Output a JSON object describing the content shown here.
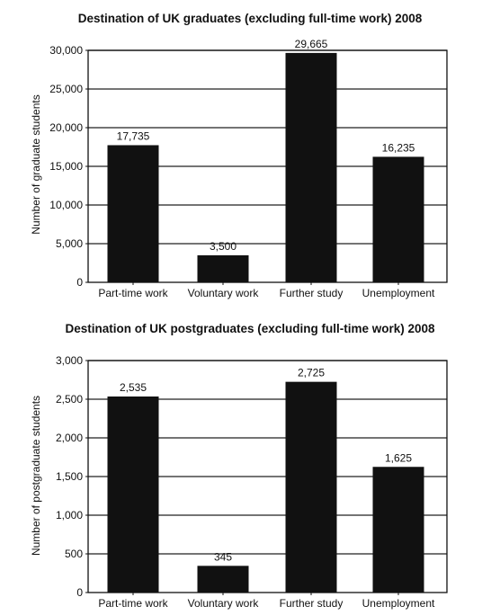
{
  "chart_data": [
    {
      "type": "bar",
      "title": "Destination of UK graduates (excluding full-time work) 2008",
      "xlabel": "",
      "ylabel": "Number of graduate students",
      "categories": [
        "Part-time work",
        "Voluntary work",
        "Further study",
        "Unemployment"
      ],
      "values": [
        17735,
        3500,
        29665,
        16235
      ],
      "value_labels": [
        "17,735",
        "3,500",
        "29,665",
        "16,235"
      ],
      "ylim": [
        0,
        30000
      ],
      "yticks": [
        0,
        5000,
        10000,
        15000,
        20000,
        25000,
        30000
      ],
      "ytick_labels": [
        "0",
        "5,000",
        "10,000",
        "15,000",
        "20,000",
        "25,000",
        "30,000"
      ],
      "grid": true,
      "bar_color": "#111111"
    },
    {
      "type": "bar",
      "title": "Destination of UK postgraduates (excluding full-time work) 2008",
      "xlabel": "",
      "ylabel": "Number of postgraduate students",
      "categories": [
        "Part-time work",
        "Voluntary work",
        "Further study",
        "Unemployment"
      ],
      "values": [
        2535,
        345,
        2725,
        1625
      ],
      "value_labels": [
        "2,535",
        "345",
        "2,725",
        "1,625"
      ],
      "ylim": [
        0,
        3000
      ],
      "yticks": [
        0,
        500,
        1000,
        1500,
        2000,
        2500,
        3000
      ],
      "ytick_labels": [
        "0",
        "500",
        "1,000",
        "1,500",
        "2,000",
        "2,500",
        "3,000"
      ],
      "grid": true,
      "bar_color": "#111111"
    }
  ]
}
